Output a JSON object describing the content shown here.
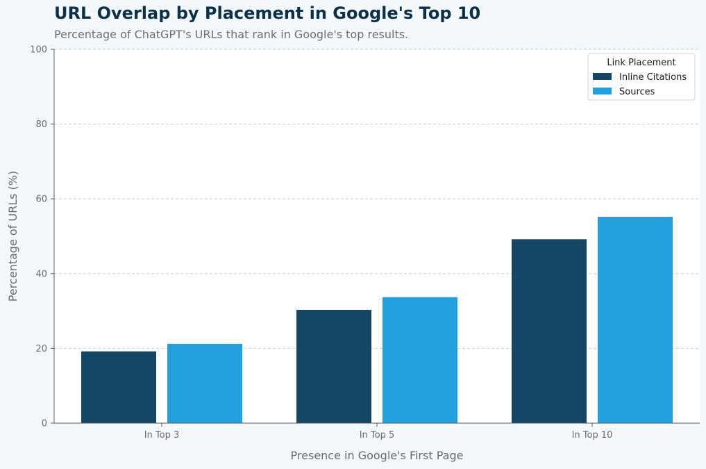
{
  "chart_data": {
    "type": "bar",
    "title": "URL Overlap by Placement in Google's Top 10",
    "subtitle": "Percentage of ChatGPT's URLs that rank in Google's top results.",
    "xlabel": "Presence in Google's First Page",
    "ylabel": "Percentage of URLs (%)",
    "categories": [
      "In Top 3",
      "In Top 5",
      "In Top 10"
    ],
    "series": [
      {
        "name": "Inline Citations",
        "color": "#154663",
        "values": [
          19.2,
          30.3,
          49.2
        ]
      },
      {
        "name": "Sources",
        "color": "#23a0dc",
        "values": [
          21.2,
          33.7,
          55.2
        ]
      }
    ],
    "ylim": [
      0,
      100
    ],
    "yticks": [
      0,
      20,
      40,
      60,
      80,
      100
    ],
    "grid": true,
    "legend": {
      "title": "Link Placement",
      "position": "top-right"
    }
  },
  "colors": {
    "title": "#0b3049",
    "background": "#f5f8fb",
    "plot_background": "#ffffff"
  }
}
